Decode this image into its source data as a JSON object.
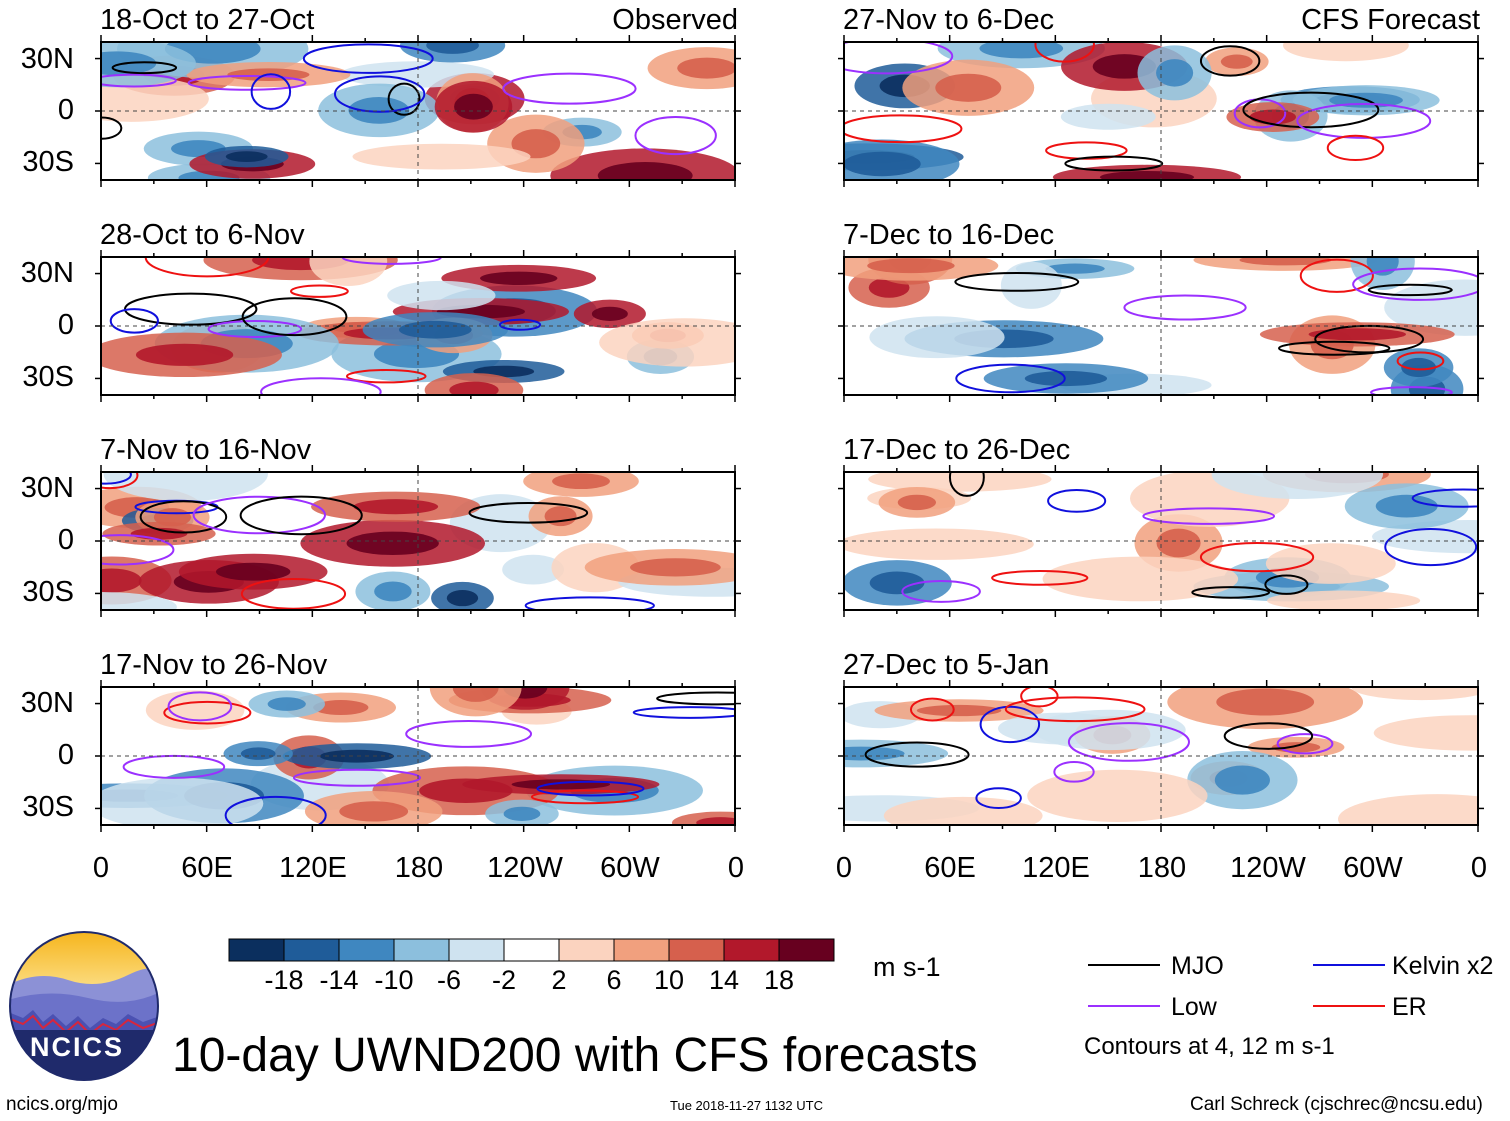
{
  "page": {
    "main_title": "10-day UWND200 with CFS forecasts",
    "site_url": "ncics.org/mjo",
    "timestamp": "Tue 2018-11-27 1132 UTC",
    "author": "Carl Schreck (cjschrec@ncsu.edu)",
    "logo_text": "NCICS",
    "units": "m s-1"
  },
  "chart_data": {
    "type": "heatmap",
    "variable": "200-hPa zonal wind anomaly",
    "observed_label": "Observed",
    "forecast_label": "CFS Forecast",
    "lat_ticks": [
      "30N",
      "0",
      "30S"
    ],
    "lon_ticks": [
      "0",
      "60E",
      "120E",
      "180",
      "120W",
      "60W",
      "0"
    ],
    "lat_range": [
      -40,
      40
    ],
    "lon_range": [
      0,
      360
    ],
    "panels": [
      {
        "title": "18-Oct to 27-Oct",
        "group": "observed"
      },
      {
        "title": "28-Oct to 6-Nov",
        "group": "observed"
      },
      {
        "title": "7-Nov to 16-Nov",
        "group": "observed"
      },
      {
        "title": "17-Nov to 26-Nov",
        "group": "observed"
      },
      {
        "title": "27-Nov to 6-Dec",
        "group": "forecast"
      },
      {
        "title": "7-Dec to 16-Dec",
        "group": "forecast"
      },
      {
        "title": "17-Dec to 26-Dec",
        "group": "forecast"
      },
      {
        "title": "27-Dec to 5-Jan",
        "group": "forecast"
      }
    ],
    "colorbar": {
      "ticks": [
        "-18",
        "-14",
        "-10",
        "-6",
        "-2",
        "2",
        "6",
        "10",
        "14",
        "18"
      ],
      "colors": [
        "#0b2f5e",
        "#1f5c99",
        "#3f87c0",
        "#8cbfdd",
        "#cfe3f0",
        "#ffffff",
        "#fbd3bf",
        "#f1a07e",
        "#d6604d",
        "#b2182b",
        "#67001f"
      ]
    },
    "legend": {
      "items": [
        {
          "label": "MJO",
          "color": "#000000"
        },
        {
          "label": "Low",
          "color": "#9b30ff"
        },
        {
          "label": "Kelvin x2",
          "color": "#1010dd"
        },
        {
          "label": "ER",
          "color": "#ee1111"
        }
      ],
      "note": "Contours at 4, 12 m s-1"
    }
  }
}
